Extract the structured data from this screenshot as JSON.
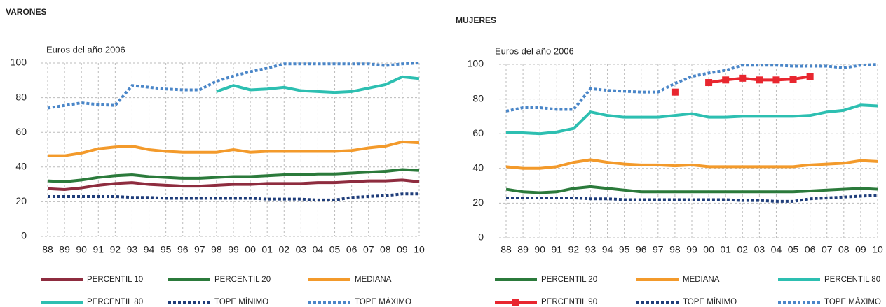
{
  "chart_data": [
    {
      "type": "line",
      "title": "VARONES",
      "y_label": "Euros del año 2006",
      "categories": [
        "88",
        "89",
        "90",
        "91",
        "92",
        "93",
        "94",
        "95",
        "96",
        "97",
        "98",
        "99",
        "00",
        "01",
        "02",
        "03",
        "04",
        "05",
        "06",
        "07",
        "08",
        "09",
        "10"
      ],
      "ylim": [
        0,
        100
      ],
      "yticks": [
        0,
        20,
        40,
        60,
        80,
        100
      ],
      "grid": true,
      "series": [
        {
          "name": "PERCENTIL 10",
          "color": "#8e2c3f",
          "style": "solid",
          "values": [
            27.5,
            27,
            28,
            29.5,
            30.5,
            31,
            30,
            29.5,
            29,
            29,
            29.5,
            30,
            30,
            30.5,
            30.5,
            30.5,
            31,
            31,
            31.5,
            32,
            32,
            32.5,
            31.5
          ]
        },
        {
          "name": "PERCENTIL 20",
          "color": "#2b7a3b",
          "style": "solid",
          "values": [
            32,
            31.5,
            32.5,
            34,
            35,
            35.5,
            34.5,
            34,
            33.5,
            33.5,
            34,
            34.5,
            34.5,
            35,
            35.5,
            35.5,
            36,
            36,
            36.5,
            37,
            37.5,
            38.5,
            38
          ]
        },
        {
          "name": "MEDIANA",
          "color": "#f39a2b",
          "style": "solid",
          "values": [
            46.5,
            46.5,
            48,
            50.5,
            51.5,
            52,
            50,
            49,
            48.5,
            48.5,
            48.5,
            50,
            48.5,
            49,
            49,
            49,
            49,
            49,
            49.5,
            51,
            52,
            54.5,
            54
          ]
        },
        {
          "name": "PERCENTIL 80",
          "color": "#2dbfb1",
          "style": "solid",
          "values": [
            null,
            null,
            null,
            null,
            null,
            null,
            null,
            null,
            null,
            null,
            83.5,
            87,
            84.5,
            85,
            86,
            84,
            83.5,
            83,
            83.5,
            85.5,
            87.5,
            92,
            91
          ]
        },
        {
          "name": "TOPE MÍNIMO",
          "color": "#1f3d7a",
          "style": "dotted",
          "values": [
            23,
            23,
            23,
            23,
            23,
            22.5,
            22.5,
            22,
            22,
            22,
            22,
            22,
            22,
            21.5,
            21.5,
            21.5,
            21,
            21,
            22.5,
            23,
            23.5,
            24.5,
            24.5
          ]
        },
        {
          "name": "TOPE MÁXIMO",
          "color": "#4a86c8",
          "style": "dotted",
          "values": [
            74,
            75.5,
            77,
            76,
            75.5,
            87,
            86,
            85,
            84.5,
            84.5,
            89.5,
            92.5,
            95,
            97,
            99.5,
            99.5,
            99.5,
            99.5,
            99.5,
            99.5,
            98.5,
            99.5,
            100
          ]
        }
      ]
    },
    {
      "type": "line",
      "title": "MUJERES",
      "y_label": "Euros del año 2006",
      "categories": [
        "88",
        "89",
        "90",
        "91",
        "92",
        "93",
        "94",
        "95",
        "96",
        "97",
        "98",
        "99",
        "00",
        "01",
        "02",
        "03",
        "04",
        "05",
        "06",
        "07",
        "08",
        "09",
        "10"
      ],
      "ylim": [
        0,
        100
      ],
      "yticks": [
        0,
        20,
        40,
        60,
        80,
        100
      ],
      "grid": true,
      "series": [
        {
          "name": "PERCENTIL 20",
          "color": "#2b7a3b",
          "style": "solid",
          "values": [
            28,
            26.5,
            26,
            26.5,
            28.5,
            29.5,
            28.5,
            27.5,
            26.5,
            26.5,
            26.5,
            26.5,
            26.5,
            26.5,
            26.5,
            26.5,
            26.5,
            26.5,
            27,
            27.5,
            28,
            28.5,
            28
          ]
        },
        {
          "name": "MEDIANA",
          "color": "#f39a2b",
          "style": "solid",
          "values": [
            41,
            40,
            40,
            41,
            43.5,
            45,
            43.5,
            42.5,
            42,
            42,
            41.5,
            42,
            41,
            41,
            41,
            41,
            41,
            41,
            42,
            42.5,
            43,
            44.5,
            44
          ]
        },
        {
          "name": "PERCENTIL 80",
          "color": "#2dbfb1",
          "style": "solid",
          "values": [
            60.5,
            60.5,
            60,
            61,
            63,
            72.5,
            70.5,
            69.5,
            69.5,
            69.5,
            70.5,
            71.5,
            69.5,
            69.5,
            70,
            70,
            70,
            70,
            70.5,
            72.5,
            73.5,
            76.5,
            76
          ]
        },
        {
          "name": "PERCENTIL 90",
          "color": "#e8262f",
          "style": "solid",
          "marker": "square",
          "values": [
            null,
            null,
            null,
            null,
            null,
            null,
            null,
            null,
            null,
            null,
            84,
            null,
            89.5,
            91,
            92,
            91,
            91,
            91.5,
            93,
            null,
            null,
            null,
            null
          ]
        },
        {
          "name": "TOPE MÍNIMO",
          "color": "#1f3d7a",
          "style": "dotted",
          "values": [
            23,
            23,
            23,
            23,
            23,
            22.5,
            22.5,
            22,
            22,
            22,
            22,
            22,
            22,
            22,
            21.5,
            21.5,
            21,
            21,
            22.5,
            23,
            23.5,
            24,
            24.5
          ]
        },
        {
          "name": "TOPE MÁXIMO",
          "color": "#4a86c8",
          "style": "dotted",
          "values": [
            73,
            75,
            75,
            74,
            74,
            86,
            85,
            84.5,
            84,
            84,
            89,
            93,
            95,
            96.5,
            99.5,
            99.5,
            99.5,
            99,
            99,
            99,
            98,
            99.5,
            100
          ]
        }
      ]
    }
  ]
}
